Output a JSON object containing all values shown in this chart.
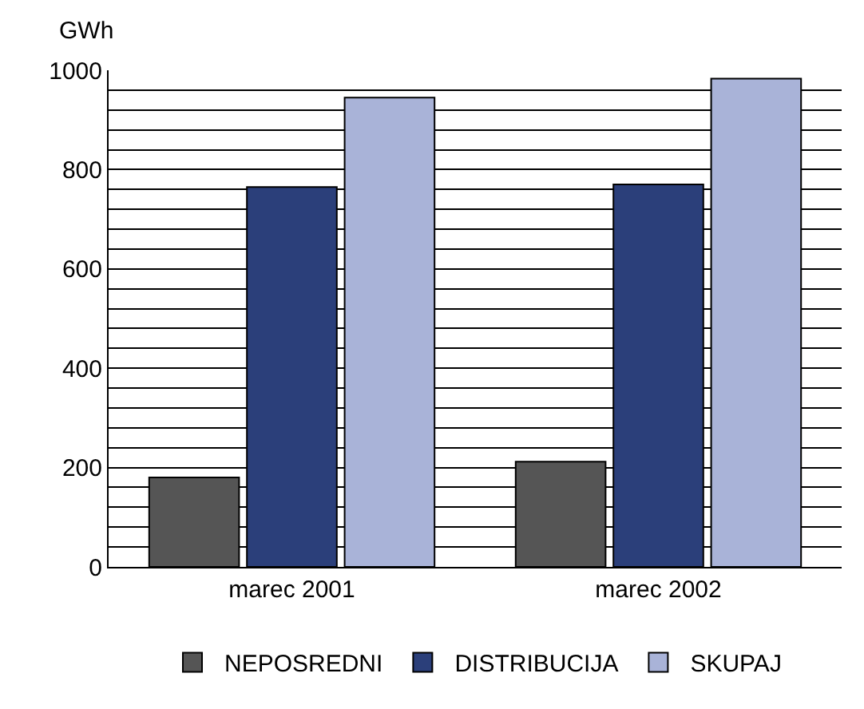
{
  "chart_data": {
    "type": "bar",
    "ylabel": "GWh",
    "categories": [
      "marec 2001",
      "marec 2002"
    ],
    "series": [
      {
        "name": "NEPOSREDNI",
        "color": "#555555",
        "values": [
          180,
          212
        ]
      },
      {
        "name": "DISTRIBUCIJA",
        "color": "#2b3f7a",
        "values": [
          765,
          770
        ]
      },
      {
        "name": "SKUPAJ",
        "color": "#a9b3d8",
        "values": [
          945,
          983
        ]
      }
    ],
    "ylim": [
      0,
      1000
    ],
    "yticks": [
      0,
      {
        "value": 40,
        "label": null
      },
      {
        "value": 80,
        "label": null
      },
      {
        "value": 120,
        "label": null
      },
      {
        "value": 160,
        "label": null
      },
      200,
      {
        "value": 240,
        "label": null
      },
      {
        "value": 280,
        "label": null
      },
      {
        "value": 320,
        "label": null
      },
      {
        "value": 360,
        "label": null
      },
      400,
      {
        "value": 440,
        "label": null
      },
      {
        "value": 480,
        "label": null
      },
      {
        "value": 520,
        "label": null
      },
      {
        "value": 560,
        "label": null
      },
      600,
      {
        "value": 640,
        "label": null
      },
      {
        "value": 680,
        "label": null
      },
      {
        "value": 720,
        "label": null
      },
      {
        "value": 760,
        "label": null
      },
      800,
      {
        "value": 840,
        "label": null
      },
      {
        "value": 880,
        "label": null
      },
      {
        "value": 920,
        "label": null
      },
      {
        "value": 960,
        "label": null
      },
      1000
    ],
    "grid": true,
    "legend": "bottom"
  }
}
